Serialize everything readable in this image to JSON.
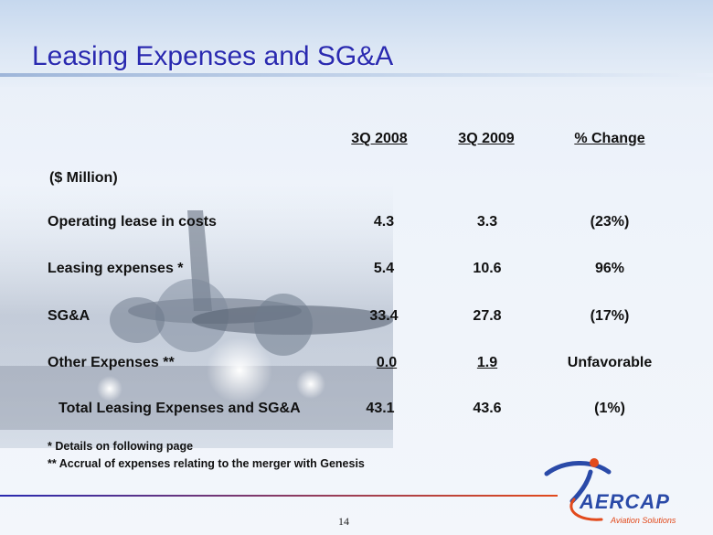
{
  "slide": {
    "title": "Leasing Expenses and SG&A",
    "page_number": "14"
  },
  "table": {
    "columns": [
      "3Q 2008",
      "3Q 2009",
      "% Change"
    ],
    "unit_label": "($ Million)",
    "rows": [
      {
        "label": "Operating lease in costs",
        "q2008": "4.3",
        "q2009": "3.3",
        "change": "(23%)"
      },
      {
        "label": "Leasing expenses *",
        "q2008": "5.4",
        "q2009": "10.6",
        "change": "96%"
      },
      {
        "label": "SG&A",
        "q2008": "33.4",
        "q2009": "27.8",
        "change": "(17%)"
      },
      {
        "label": "Other Expenses **",
        "q2008": "0.0",
        "q2009": "1.9",
        "change": "Unfavorable"
      },
      {
        "label": "Total Leasing Expenses and SG&A",
        "q2008": "43.1",
        "q2009": "43.6",
        "change": "(1%)"
      }
    ]
  },
  "notes": [
    "* Details on following page",
    "** Accrual of expenses relating to the merger with Genesis"
  ],
  "logo": {
    "text": "AERCAP",
    "tagline": "Aviation Solutions"
  },
  "colors": {
    "title": "#2a2ab0",
    "logo_blue": "#2a4aa8",
    "logo_orange": "#e24a1c"
  }
}
